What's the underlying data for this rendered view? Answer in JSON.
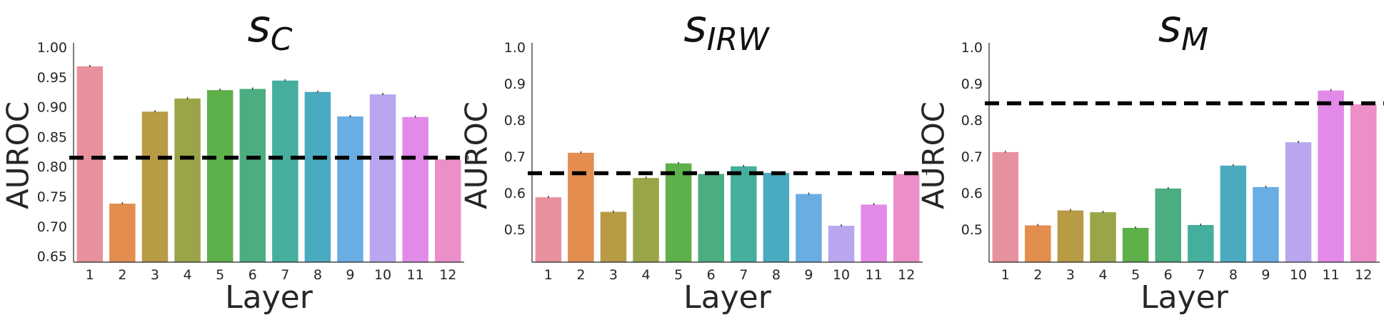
{
  "palette": [
    "#e8919e",
    "#e38d4f",
    "#b99a45",
    "#9aa547",
    "#5eb04a",
    "#4cae80",
    "#46ae9d",
    "#4aaac0",
    "#6aade3",
    "#b9a6ee",
    "#e28ae8",
    "#ec8fc9"
  ],
  "chart_data": [
    {
      "type": "bar",
      "title_main": "s",
      "title_sub": "C",
      "xlabel": "Layer",
      "ylabel": "AUROC",
      "categories": [
        "1",
        "2",
        "3",
        "4",
        "5",
        "6",
        "7",
        "8",
        "9",
        "10",
        "11",
        "12"
      ],
      "values": [
        0.968,
        0.738,
        0.892,
        0.914,
        0.928,
        0.93,
        0.944,
        0.925,
        0.884,
        0.921,
        0.883,
        0.812
      ],
      "baseline": 0.815,
      "ylim": [
        0.64,
        1.0
      ],
      "yticks": [
        "0.65",
        "0.70",
        "0.75",
        "0.80",
        "0.85",
        "0.90",
        "0.95",
        "1.00"
      ]
    },
    {
      "type": "bar",
      "title_main": "s",
      "title_sub": "IRW",
      "xlabel": "Layer",
      "ylabel": "AUROC",
      "categories": [
        "1",
        "2",
        "3",
        "4",
        "5",
        "6",
        "7",
        "8",
        "9",
        "10",
        "11",
        "12"
      ],
      "values": [
        0.588,
        0.71,
        0.548,
        0.641,
        0.681,
        0.652,
        0.673,
        0.655,
        0.597,
        0.51,
        0.568,
        0.652
      ],
      "baseline": 0.654,
      "ylim": [
        0.41,
        1.0
      ],
      "yticks": [
        "0.5",
        "0.6",
        "0.7",
        "0.8",
        "0.9",
        "1.0"
      ]
    },
    {
      "type": "bar",
      "title_main": "s",
      "title_sub": "M",
      "xlabel": "Layer",
      "ylabel": "AUROC",
      "categories": [
        "1",
        "2",
        "3",
        "4",
        "5",
        "6",
        "7",
        "8",
        "9",
        "10",
        "11",
        "12"
      ],
      "values": [
        0.712,
        0.511,
        0.552,
        0.547,
        0.504,
        0.612,
        0.512,
        0.675,
        0.616,
        0.739,
        0.881,
        0.843
      ],
      "baseline": 0.846,
      "ylim": [
        0.41,
        1.0
      ],
      "yticks": [
        "0.5",
        "0.6",
        "0.7",
        "0.8",
        "0.9",
        "1.0"
      ]
    }
  ]
}
